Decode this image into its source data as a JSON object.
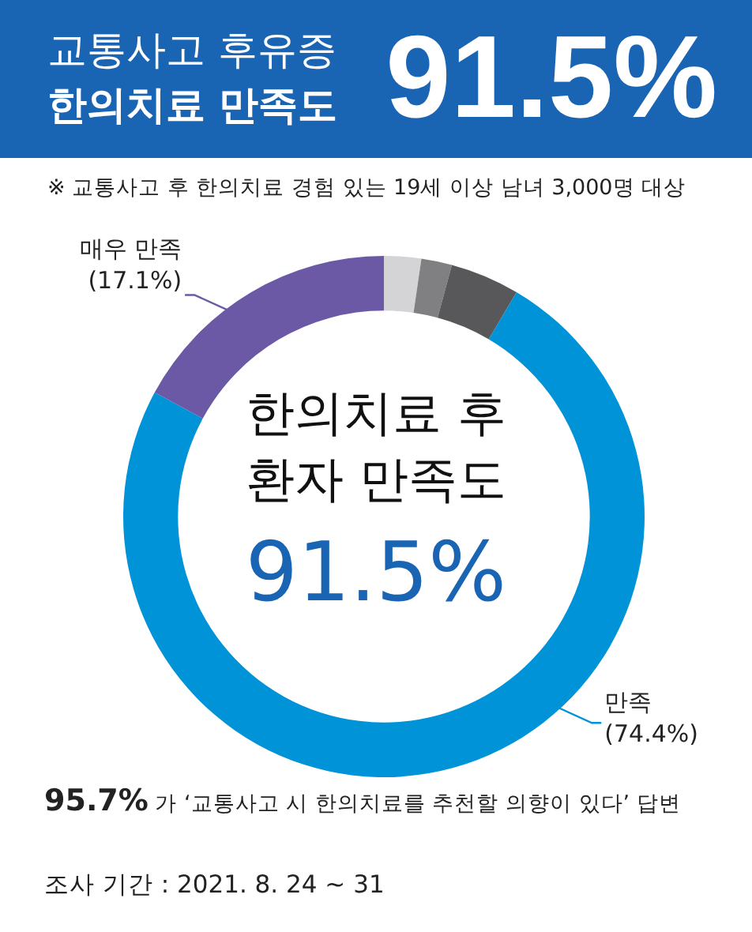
{
  "chart_data": {
    "type": "donut",
    "title": "교통사고 후유증\n한의치료 만족도",
    "subtitle": "※ 교통사고 후 한의치료 경험 있는 19세 이상 남녀 3,000명 대상",
    "categories": [
      null,
      null,
      null,
      "만족",
      "매우 만족"
    ],
    "values": [
      2.3,
      1.9,
      4.3,
      74.4,
      17.1
    ],
    "colors": [
      "#d4d4d6",
      "#808083",
      "#58585a",
      "#0093d8",
      "#6c59a6"
    ],
    "value_labels": [
      null,
      null,
      null,
      "(74.4%)",
      "(17.1%)"
    ],
    "annotations": [
      "91.5%",
      "한의치료 후\n환자 만족도",
      "91.5%",
      "95.7% 가 ‘교통사고 시 한의치료를 추천할 의향이 있다’ 답변",
      "조사 기간 : 2021. 8. 24 ~ 31"
    ]
  }
}
